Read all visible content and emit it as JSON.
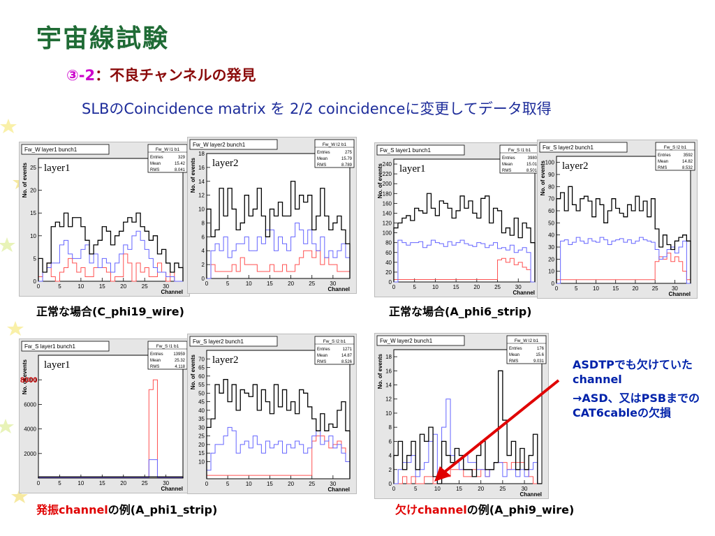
{
  "slide": {
    "title": "宇宙線試験",
    "subtitle_num": "③-2",
    "subtitle_text": "：不良チャンネルの発見",
    "matrix_line": "SLBのCoincidence matrix  を  2/2 coincidenceに変更してデータ取得"
  },
  "captions": {
    "c1": "正常な場合(C_phi19_wire)",
    "c2": "正常な場合(A_phi6_strip)",
    "c3_red": "発振channel",
    "c3_rest": "の例(A_phi1_strip)",
    "c4_red": "欠けchannel",
    "c4_rest": "の例(A_phi9_wire)"
  },
  "annotation": {
    "line1": "ASDTPでも欠けていたchannel",
    "line2": "→ASD、又はPSBまでのCAT6cableの欠損"
  },
  "colors": {
    "title": "#1f6b35",
    "black_series": "#000000",
    "blue_series": "#6464ff",
    "red_series": "#ff5050",
    "arrow": "#e00000"
  },
  "chart_data": [
    {
      "id": "h1",
      "type": "histogram",
      "title": "Fw_W layer1 bunch1",
      "label": "layer1",
      "stats": {
        "name": "Fw_W l1 b1",
        "entries": "329",
        "mean": "15.42",
        "rms": "8.041"
      },
      "xlabel": "Channel",
      "ylabel": "No. of events",
      "xlim": [
        0,
        34
      ],
      "ylim": [
        0,
        27
      ],
      "yticks": [
        0,
        5,
        10,
        15,
        20,
        25
      ],
      "xticks": [
        0,
        5,
        10,
        15,
        20,
        25,
        30
      ],
      "black": [
        5,
        2,
        4,
        12,
        13,
        12,
        15,
        12,
        14,
        14,
        12,
        9,
        6,
        8,
        9,
        12,
        11,
        8,
        10,
        11,
        13,
        14,
        13,
        15,
        12,
        11,
        9,
        10,
        6,
        7,
        4,
        2,
        4,
        3
      ],
      "blue": [
        0,
        2,
        3,
        4,
        4,
        8,
        9,
        6,
        5,
        5,
        7,
        8,
        4,
        6,
        3,
        5,
        4,
        2,
        4,
        6,
        8,
        7,
        10,
        11,
        9,
        7,
        5,
        3,
        2,
        2,
        1,
        1,
        0,
        0
      ],
      "red": [
        1,
        2,
        4,
        1,
        0,
        2,
        3,
        5,
        4,
        2,
        3,
        1,
        1,
        3,
        3,
        3,
        2,
        0,
        1,
        1,
        6,
        4,
        0,
        4,
        2,
        3,
        1,
        1,
        4,
        2,
        0,
        2,
        0,
        0
      ]
    },
    {
      "id": "h2",
      "type": "histogram",
      "title": "Fw_W layer2 bunch1",
      "label": "layer2",
      "stats": {
        "name": "Fw_W l2 b1",
        "entries": "275",
        "mean": "15.79",
        "rms": "8.789"
      },
      "xlabel": "Channel",
      "ylabel": "No. of events",
      "xlim": [
        0,
        34
      ],
      "ylim": [
        0,
        18
      ],
      "yticks": [
        0,
        2,
        4,
        6,
        8,
        10,
        12,
        14,
        16,
        18
      ],
      "xticks": [
        0,
        5,
        10,
        15,
        20,
        25,
        30
      ],
      "black": [
        10,
        6,
        7,
        13,
        9,
        13,
        10,
        7,
        8,
        12,
        9,
        10,
        13,
        9,
        6,
        10,
        9,
        11,
        9,
        9,
        14,
        10,
        12,
        11,
        12,
        7,
        9,
        13,
        9,
        7,
        8,
        9,
        7,
        5
      ],
      "blue": [
        0,
        4,
        5,
        4,
        6,
        3,
        4,
        5,
        5,
        6,
        4,
        4,
        6,
        5,
        7,
        7,
        4,
        6,
        5,
        4,
        6,
        8,
        7,
        5,
        7,
        5,
        4,
        6,
        3,
        4,
        3,
        4,
        5,
        3
      ],
      "red": [
        0,
        2,
        1,
        1,
        1,
        1,
        2,
        1,
        3,
        2,
        2,
        2,
        1,
        1,
        1,
        2,
        1,
        1,
        2,
        1,
        1,
        2,
        3,
        4,
        4,
        3,
        4,
        2,
        3,
        2,
        2,
        1,
        1,
        1
      ]
    },
    {
      "id": "h3",
      "type": "histogram",
      "title": "Fw_S layer1 bunch1",
      "label": "layer1",
      "stats": {
        "name": "Fw_S l1 b1",
        "entries": "3980",
        "mean": "15.01",
        "rms": "8.501"
      },
      "xlabel": "Channel",
      "ylabel": "No. of events",
      "xlim": [
        0,
        34
      ],
      "ylim": [
        0,
        250
      ],
      "yticks": [
        0,
        20,
        40,
        60,
        80,
        100,
        120,
        140,
        160,
        180,
        200,
        220,
        240
      ],
      "xticks": [
        0,
        5,
        10,
        15,
        20,
        25,
        30
      ],
      "black": [
        110,
        120,
        130,
        135,
        125,
        150,
        145,
        140,
        180,
        150,
        135,
        165,
        160,
        150,
        130,
        145,
        175,
        150,
        165,
        140,
        130,
        170,
        175,
        120,
        150,
        145,
        100,
        110,
        95,
        130,
        90,
        120,
        110,
        80
      ],
      "blue": [
        0,
        85,
        80,
        75,
        80,
        80,
        82,
        70,
        75,
        85,
        80,
        78,
        72,
        82,
        75,
        80,
        85,
        78,
        75,
        72,
        80,
        78,
        70,
        75,
        80,
        68,
        70,
        65,
        75,
        60,
        65,
        70,
        60,
        0
      ],
      "red": [
        5,
        5,
        5,
        5,
        5,
        5,
        5,
        5,
        5,
        5,
        5,
        5,
        5,
        5,
        5,
        5,
        5,
        5,
        5,
        5,
        5,
        5,
        5,
        5,
        5,
        45,
        48,
        40,
        48,
        35,
        40,
        30,
        25,
        0
      ]
    },
    {
      "id": "h4",
      "type": "histogram",
      "title": "Fw_S layer2 bunch1",
      "label": "layer2",
      "stats": {
        "name": "Fw_S l2 b1",
        "entries": "3592",
        "mean": "14.82",
        "rms": "8.532"
      },
      "xlabel": "Channel",
      "ylabel": "No. of events",
      "xlim": [
        0,
        34
      ],
      "ylim": [
        0,
        105
      ],
      "yticks": [
        0,
        10,
        20,
        30,
        40,
        50,
        60,
        70,
        80,
        90,
        100
      ],
      "xticks": [
        0,
        5,
        10,
        15,
        20,
        25,
        30
      ],
      "black": [
        70,
        75,
        60,
        80,
        65,
        60,
        70,
        72,
        68,
        55,
        70,
        65,
        50,
        60,
        70,
        62,
        58,
        55,
        65,
        60,
        72,
        60,
        68,
        55,
        70,
        45,
        30,
        40,
        32,
        28,
        35,
        38,
        40,
        35
      ],
      "blue": [
        0,
        35,
        36,
        32,
        34,
        38,
        35,
        33,
        37,
        35,
        34,
        38,
        36,
        32,
        35,
        36,
        37,
        34,
        36,
        33,
        35,
        38,
        36,
        35,
        34,
        28,
        20,
        22,
        28,
        30,
        25,
        30,
        35,
        0
      ],
      "red": [
        3,
        3,
        3,
        3,
        3,
        3,
        3,
        3,
        3,
        3,
        3,
        3,
        3,
        3,
        3,
        3,
        3,
        3,
        3,
        3,
        3,
        3,
        3,
        3,
        3,
        18,
        22,
        20,
        25,
        18,
        22,
        18,
        10,
        3
      ]
    },
    {
      "id": "h5",
      "type": "histogram",
      "title": "Fw_S layer1 bunch1",
      "label": "layer1",
      "stats": {
        "name": "Fw_S l1 b1",
        "entries": "13959",
        "mean": "25.32",
        "rms": "4.118"
      },
      "xlabel": "Channel",
      "ylabel": "No. of events",
      "xlim": [
        0,
        34
      ],
      "ylim": [
        0,
        10000
      ],
      "yticks": [
        2000,
        4000,
        6000,
        8000
      ],
      "ytick_labels": [
        "2000",
        "4000",
        "6000",
        "8000"
      ],
      "xticks": [
        0,
        5,
        10,
        15,
        20,
        25,
        30
      ],
      "black": [
        100,
        100,
        100,
        100,
        100,
        100,
        100,
        100,
        100,
        100,
        100,
        100,
        100,
        100,
        100,
        100,
        100,
        100,
        100,
        100,
        100,
        100,
        100,
        100,
        100,
        100,
        100,
        100,
        100,
        100,
        100,
        100,
        100,
        100
      ],
      "blue": [
        50,
        50,
        50,
        50,
        50,
        50,
        50,
        50,
        50,
        50,
        50,
        50,
        50,
        50,
        50,
        50,
        50,
        50,
        50,
        50,
        50,
        50,
        50,
        50,
        50,
        50,
        1500,
        1500,
        50,
        50,
        50,
        50,
        50,
        50
      ],
      "red": [
        50,
        50,
        50,
        50,
        50,
        50,
        50,
        50,
        50,
        50,
        50,
        50,
        50,
        50,
        50,
        50,
        50,
        50,
        50,
        50,
        50,
        50,
        50,
        50,
        50,
        50,
        7200,
        8000,
        50,
        50,
        50,
        50,
        50,
        50
      ],
      "overlay_label": "8000"
    },
    {
      "id": "h6",
      "type": "histogram",
      "title": "Fw_S layer2 bunch1",
      "label": "layer2",
      "stats": {
        "name": "Fw_S l2 b1",
        "entries": "1271",
        "mean": "14.87",
        "rms": "8.526"
      },
      "xlabel": "Channel",
      "ylabel": "No. of events",
      "xlim": [
        0,
        34
      ],
      "ylim": [
        0,
        75
      ],
      "yticks": [
        10,
        15,
        20,
        25,
        30,
        35,
        40,
        45,
        50,
        55,
        60,
        65,
        70
      ],
      "xticks": [
        0,
        5,
        10,
        15,
        20,
        25,
        30
      ],
      "black": [
        30,
        35,
        55,
        50,
        58,
        45,
        55,
        40,
        52,
        50,
        48,
        55,
        40,
        52,
        45,
        38,
        55,
        42,
        52,
        40,
        45,
        38,
        52,
        50,
        42,
        35,
        28,
        38,
        28,
        32,
        30,
        40,
        45,
        28
      ],
      "blue": [
        5,
        15,
        20,
        20,
        25,
        30,
        28,
        15,
        20,
        22,
        18,
        25,
        20,
        15,
        22,
        18,
        20,
        22,
        15,
        20,
        18,
        22,
        20,
        15,
        18,
        25,
        28,
        20,
        22,
        25,
        18,
        20,
        15,
        10
      ],
      "red": [
        2,
        2,
        2,
        2,
        2,
        2,
        2,
        2,
        2,
        2,
        2,
        2,
        2,
        2,
        2,
        2,
        2,
        2,
        2,
        2,
        2,
        2,
        2,
        2,
        2,
        22,
        25,
        25,
        22,
        18,
        20,
        22,
        18,
        10
      ]
    },
    {
      "id": "h7",
      "type": "histogram",
      "title": "Fw_W layer2 bunch1",
      "label": "",
      "stats": {
        "name": "Fw_W l2 b1",
        "entries": "176",
        "mean": "15.6",
        "rms": "9.031"
      },
      "xlabel": "Channel",
      "ylabel": "No. of events",
      "xlim": [
        0,
        34
      ],
      "ylim": [
        0,
        19
      ],
      "yticks": [
        0,
        2,
        4,
        6,
        8,
        10,
        12,
        14,
        16,
        18
      ],
      "xticks": [
        0,
        5,
        10,
        15,
        20,
        25,
        30
      ],
      "black": [
        4,
        6,
        2,
        4,
        6,
        2,
        7,
        6,
        8,
        1,
        0,
        6,
        4,
        3,
        5,
        4,
        2,
        2,
        1,
        4,
        6,
        2,
        2,
        3,
        16,
        9,
        4,
        6,
        2,
        5,
        2,
        4,
        7,
        0
      ],
      "blue": [
        0,
        2,
        3,
        3,
        4,
        1,
        2,
        3,
        6,
        7,
        0,
        8,
        12,
        4,
        3,
        2,
        4,
        3,
        3,
        2,
        2,
        1,
        2,
        3,
        3,
        1,
        2,
        2,
        1,
        2,
        1,
        2,
        3,
        0
      ],
      "red": [
        0,
        0,
        1,
        0,
        1,
        0,
        0,
        1,
        1,
        0,
        0,
        1,
        1,
        2,
        2,
        2,
        1,
        1,
        2,
        1,
        2,
        1,
        2,
        3,
        3,
        3,
        2,
        3,
        3,
        3,
        2,
        1,
        0,
        0
      ]
    }
  ]
}
